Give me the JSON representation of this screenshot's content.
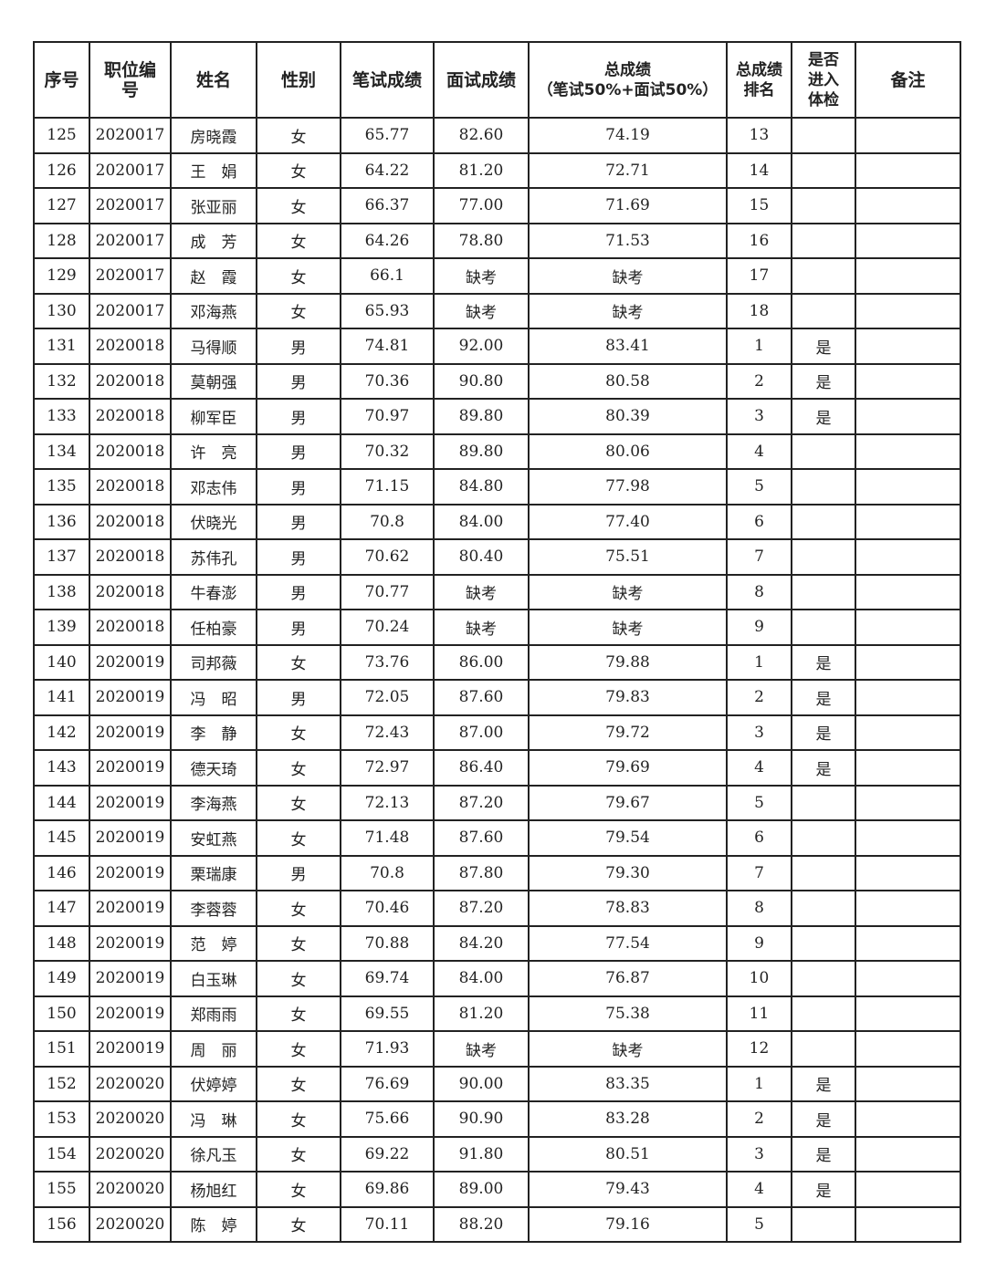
{
  "headers": [
    "序号",
    "职位编号",
    "姓名",
    "性别",
    "笔试成绩",
    "面试成绩",
    "总成绩",
    "（笔试50%+面试50%）",
    "总成绩排名",
    "是否进入体检",
    "备注"
  ],
  "rows": [
    [
      "125",
      "2020017",
      "房晓霞",
      "女",
      "65.77",
      "82.60",
      "74.19",
      "13",
      "",
      ""
    ],
    [
      "126",
      "2020017",
      "王　娟",
      "女",
      "64.22",
      "81.20",
      "72.71",
      "14",
      "",
      ""
    ],
    [
      "127",
      "2020017",
      "张亚丽",
      "女",
      "66.37",
      "77.00",
      "71.69",
      "15",
      "",
      ""
    ],
    [
      "128",
      "2020017",
      "成　芳",
      "女",
      "64.26",
      "78.80",
      "71.53",
      "16",
      "",
      ""
    ],
    [
      "129",
      "2020017",
      "赵　霞",
      "女",
      "66.1",
      "缺考",
      "缺考",
      "17",
      "",
      ""
    ],
    [
      "130",
      "2020017",
      "邓海燕",
      "女",
      "65.93",
      "缺考",
      "缺考",
      "18",
      "",
      ""
    ],
    [
      "131",
      "2020018",
      "马得顺",
      "男",
      "74.81",
      "92.00",
      "83.41",
      "1",
      "是",
      ""
    ],
    [
      "132",
      "2020018",
      "莫朝强",
      "男",
      "70.36",
      "90.80",
      "80.58",
      "2",
      "是",
      ""
    ],
    [
      "133",
      "2020018",
      "柳军臣",
      "男",
      "70.97",
      "89.80",
      "80.39",
      "3",
      "是",
      ""
    ],
    [
      "134",
      "2020018",
      "许　亮",
      "男",
      "70.32",
      "89.80",
      "80.06",
      "4",
      "",
      ""
    ],
    [
      "135",
      "2020018",
      "邓志伟",
      "男",
      "71.15",
      "84.80",
      "77.98",
      "5",
      "",
      ""
    ],
    [
      "136",
      "2020018",
      "伏晓光",
      "男",
      "70.8",
      "84.00",
      "77.40",
      "6",
      "",
      ""
    ],
    [
      "137",
      "2020018",
      "苏伟孔",
      "男",
      "70.62",
      "80.40",
      "75.51",
      "7",
      "",
      ""
    ],
    [
      "138",
      "2020018",
      "牛春澎",
      "男",
      "70.77",
      "缺考",
      "缺考",
      "8",
      "",
      ""
    ],
    [
      "139",
      "2020018",
      "任柏豪",
      "男",
      "70.24",
      "缺考",
      "缺考",
      "9",
      "",
      ""
    ],
    [
      "140",
      "2020019",
      "司邦薇",
      "女",
      "73.76",
      "86.00",
      "79.88",
      "1",
      "是",
      ""
    ],
    [
      "141",
      "2020019",
      "冯　昭",
      "男",
      "72.05",
      "87.60",
      "79.83",
      "2",
      "是",
      ""
    ],
    [
      "142",
      "2020019",
      "李　静",
      "女",
      "72.43",
      "87.00",
      "79.72",
      "3",
      "是",
      ""
    ],
    [
      "143",
      "2020019",
      "德天琦",
      "女",
      "72.97",
      "86.40",
      "79.69",
      "4",
      "是",
      ""
    ],
    [
      "144",
      "2020019",
      "李海燕",
      "女",
      "72.13",
      "87.20",
      "79.67",
      "5",
      "",
      ""
    ],
    [
      "145",
      "2020019",
      "安虹燕",
      "女",
      "71.48",
      "87.60",
      "79.54",
      "6",
      "",
      ""
    ],
    [
      "146",
      "2020019",
      "栗瑞康",
      "男",
      "70.8",
      "87.80",
      "79.30",
      "7",
      "",
      ""
    ],
    [
      "147",
      "2020019",
      "李蓉蓉",
      "女",
      "70.46",
      "87.20",
      "78.83",
      "8",
      "",
      ""
    ],
    [
      "148",
      "2020019",
      "范　婷",
      "女",
      "70.88",
      "84.20",
      "77.54",
      "9",
      "",
      ""
    ],
    [
      "149",
      "2020019",
      "白玉琳",
      "女",
      "69.74",
      "84.00",
      "76.87",
      "10",
      "",
      ""
    ],
    [
      "150",
      "2020019",
      "郑雨雨",
      "女",
      "69.55",
      "81.20",
      "75.38",
      "11",
      "",
      ""
    ],
    [
      "151",
      "2020019",
      "周　丽",
      "女",
      "71.93",
      "缺考",
      "缺考",
      "12",
      "",
      ""
    ],
    [
      "152",
      "2020020",
      "伏婷婷",
      "女",
      "76.69",
      "90.00",
      "83.35",
      "1",
      "是",
      ""
    ],
    [
      "153",
      "2020020",
      "冯　琳",
      "女",
      "75.66",
      "90.90",
      "83.28",
      "2",
      "是",
      ""
    ],
    [
      "154",
      "2020020",
      "徐凡玉",
      "女",
      "69.22",
      "91.80",
      "80.51",
      "3",
      "是",
      ""
    ],
    [
      "155",
      "2020020",
      "杨旭红",
      "女",
      "69.86",
      "89.00",
      "79.43",
      "4",
      "是",
      ""
    ],
    [
      "156",
      "2020020",
      "陈　婷",
      "女",
      "70.11",
      "88.20",
      "79.16",
      "5",
      "",
      ""
    ]
  ]
}
